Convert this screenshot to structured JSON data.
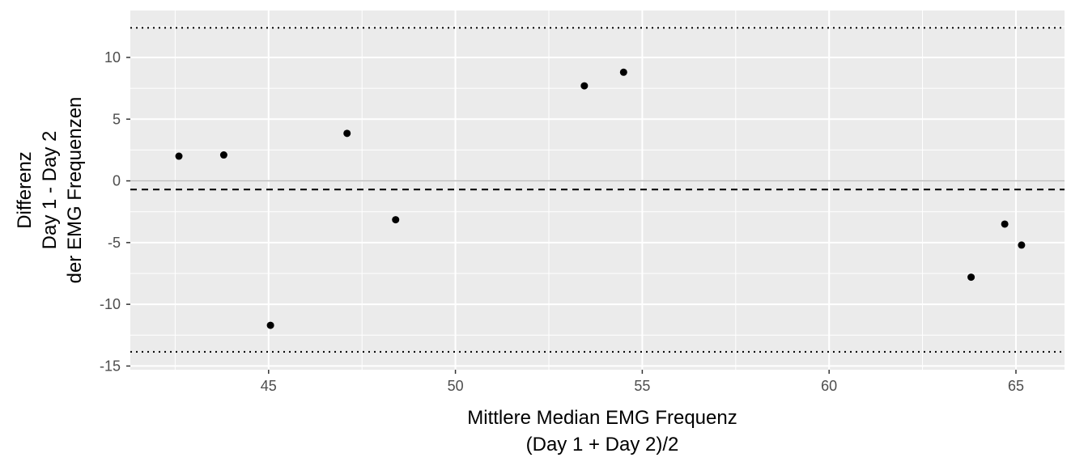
{
  "chart_data": {
    "type": "scatter",
    "title": "",
    "xlabel_lines": [
      "Mittlere Median EMG Frequenz",
      "(Day 1 + Day 2)/2"
    ],
    "ylabel_lines": [
      "Differenz",
      "Day 1 - Day 2",
      "der EMG Frequenzen"
    ],
    "xlim": [
      41.3,
      66.3
    ],
    "ylim": [
      -15.3,
      13.8
    ],
    "x_ticks": [
      45,
      50,
      55,
      60,
      65
    ],
    "x_tick_labels": [
      "45",
      "50",
      "55",
      "60",
      "65"
    ],
    "x_minor_ticks": [
      42.5,
      47.5,
      52.5,
      57.5,
      62.5
    ],
    "y_ticks": [
      -15,
      -10,
      -5,
      0,
      5,
      10
    ],
    "y_tick_labels": [
      "-15",
      "-10",
      "-5",
      "0",
      "5",
      "10"
    ],
    "y_minor_ticks": [
      -12.5,
      -7.5,
      -2.5,
      2.5,
      7.5,
      12.5
    ],
    "grid": true,
    "panel_color": "#ebebeb",
    "point_color": "#000000",
    "points": [
      {
        "x": 42.6,
        "y": 2.0
      },
      {
        "x": 43.8,
        "y": 2.1
      },
      {
        "x": 45.05,
        "y": -11.7
      },
      {
        "x": 47.1,
        "y": 3.85
      },
      {
        "x": 48.4,
        "y": -3.15
      },
      {
        "x": 53.45,
        "y": 7.7
      },
      {
        "x": 54.5,
        "y": 8.8
      },
      {
        "x": 63.8,
        "y": -7.8
      },
      {
        "x": 64.7,
        "y": -3.5
      },
      {
        "x": 65.15,
        "y": -5.2
      }
    ],
    "reference_lines": [
      {
        "y": 0,
        "style": "solid",
        "color": "#bdbdbd"
      },
      {
        "y": -0.7,
        "style": "dashed",
        "color": "#000000"
      },
      {
        "y": 12.4,
        "style": "dotted",
        "color": "#000000"
      },
      {
        "y": -13.85,
        "style": "dotted",
        "color": "#000000"
      }
    ]
  }
}
